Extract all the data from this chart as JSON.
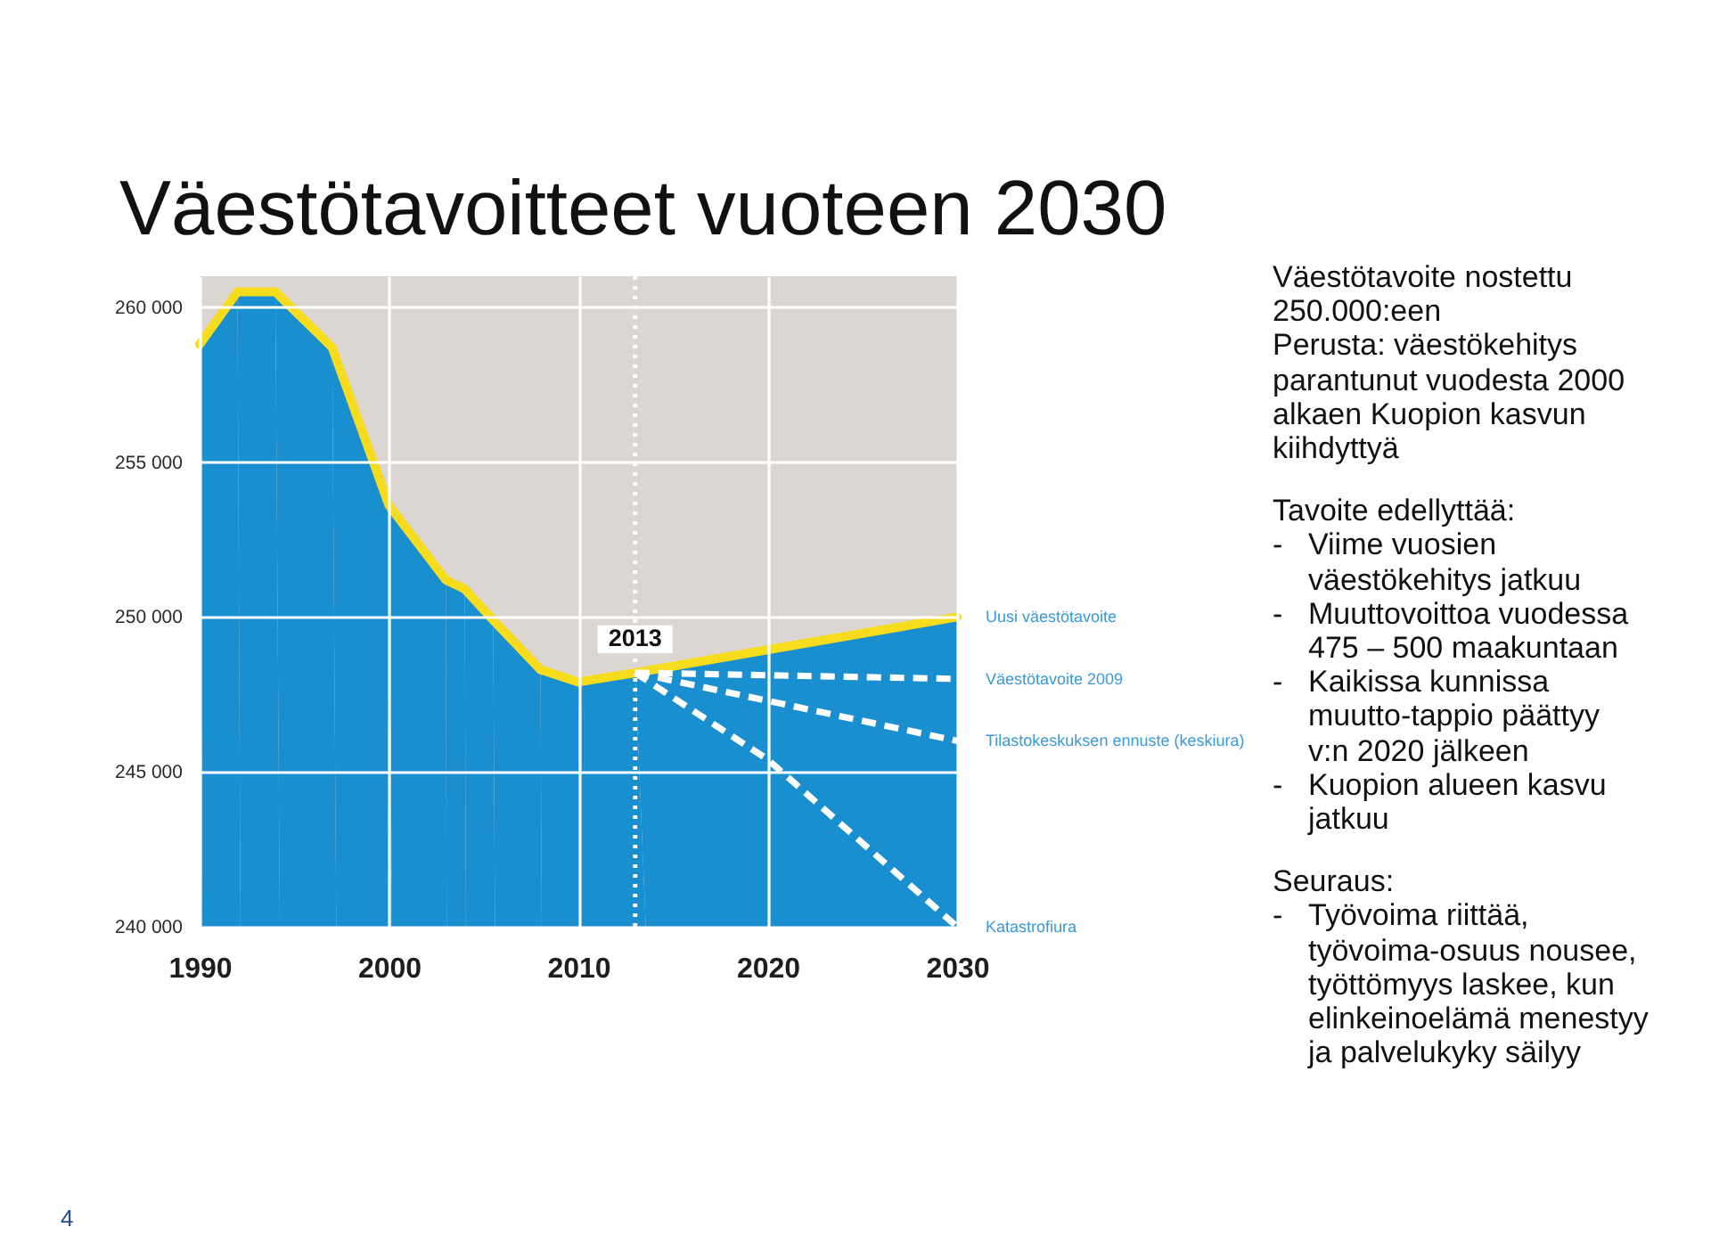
{
  "chart_data": {
    "type": "area",
    "title": "Väestötavoitteet vuoteen 2030",
    "xlim": [
      1990,
      2030
    ],
    "xticks": [
      1990,
      2000,
      2010,
      2020,
      2030
    ],
    "ylim": [
      240000,
      261000
    ],
    "yticks": [
      {
        "value": 240000,
        "label": "240 000"
      },
      {
        "value": 245000,
        "label": "245 000"
      },
      {
        "value": 250000,
        "label": "250 000"
      },
      {
        "value": 255000,
        "label": "255 000"
      },
      {
        "value": 260000,
        "label": "260 000"
      }
    ],
    "grid": true,
    "series": [
      {
        "color": "#1a8fcf",
        "x": [
          1990,
          1992,
          1994,
          1997,
          2000,
          2003,
          2004,
          2005.5,
          2008,
          2010,
          2013,
          2030
        ],
        "values": [
          258800,
          260500,
          260500,
          258700,
          253600,
          251200,
          250900,
          249900,
          248300,
          247900,
          248200,
          250000
        ]
      },
      {
        "type": "line",
        "name": "Uusi väestötavoite",
        "color": "#f6dc1c",
        "x": [
          1990,
          1992,
          1994,
          1997,
          2000,
          2003,
          2004,
          2005.5,
          2008,
          2010,
          2013,
          2030
        ],
        "values": [
          258800,
          260500,
          260500,
          258700,
          253600,
          251200,
          250900,
          249900,
          248300,
          247900,
          248200,
          250000
        ]
      },
      {
        "type": "line",
        "name": "Väestötavoite 2009",
        "color": "#ffffff",
        "line_style": "dashed",
        "x": [
          2013,
          2030
        ],
        "values": [
          248200,
          248000
        ]
      },
      {
        "type": "line",
        "name": "Tilastokeskuksen ennuste (keskiura)",
        "color": "#ffffff",
        "line_style": "dashed",
        "x": [
          2013,
          2030
        ],
        "values": [
          248200,
          246000
        ]
      },
      {
        "type": "line",
        "name": "Katastrofiura",
        "color": "#ffffff",
        "line_style": "dashed",
        "x": [
          2013,
          2020,
          2030
        ],
        "values": [
          248200,
          245400,
          240000
        ]
      }
    ],
    "ref_lines": [
      {
        "axis": "x",
        "value": 2013,
        "label": "2013",
        "color": "#ffffff",
        "line_style": "dotted"
      }
    ],
    "annotations": [
      "Väestötavoite nostettu\n250.000:een",
      "Perusta: väestökehitys\nparantunut vuodesta 2000\nalkaen Kuopion kasvun\nkiihdyttyä",
      "Tavoite edellyttää:",
      "- Viime vuosien\nväestökehitys jatkuu",
      "- Muuttovoittoa vuodessa\n475 – 500 maakuntaan",
      "- Kaikissa kunnissa\nmuutto-tappio päättyy\nv:n 2020 jälkeen",
      "- Kuopion alueen kasvu\njatkuu",
      "Seuraus:",
      "- Työvoima riittää,\ntyövoima-osuus nousee,\ntyöttömyys laskee, kun\nelinkeinoelämä menestyy\nja palvelukyky säilyy",
      "4"
    ]
  }
}
